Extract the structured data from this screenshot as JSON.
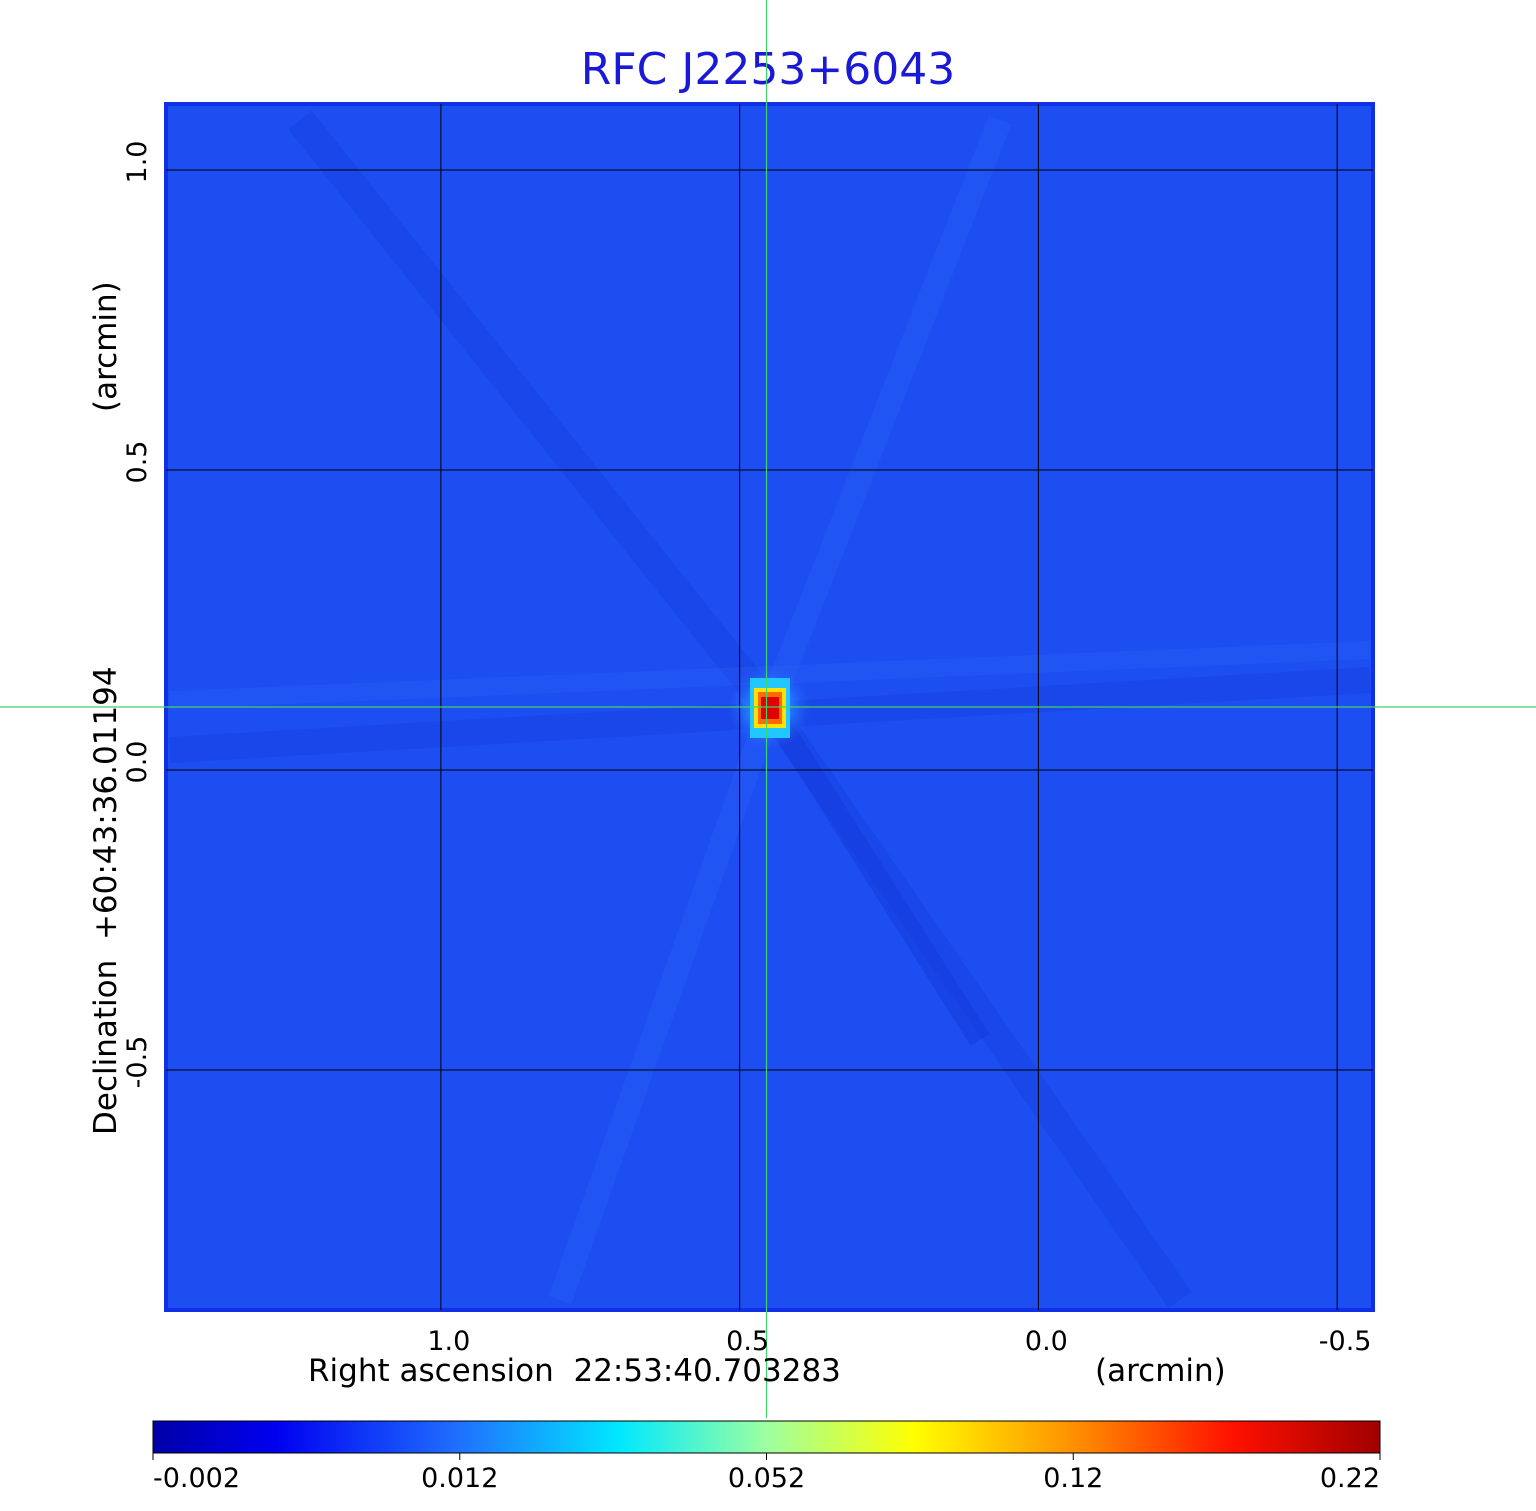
{
  "chart_data": {
    "type": "heatmap",
    "title": "RFC J2253+6043",
    "xlabel": "Right ascension  22:53:40.703283",
    "xunit": "(arcmin)",
    "ylabel": "Declination  +60:43:36.01194",
    "yunit": "(arcmin)",
    "xlim": [
      1.46,
      -0.56
    ],
    "ylim": [
      -0.9,
      1.11
    ],
    "x_ticks": [
      {
        "value": 1.0,
        "label": "1.0"
      },
      {
        "value": 0.5,
        "label": "0.5"
      },
      {
        "value": 0.0,
        "label": "0.0"
      },
      {
        "value": -0.5,
        "label": "-0.5"
      }
    ],
    "y_ticks": [
      {
        "value": 1.0,
        "label": "1.0"
      },
      {
        "value": 0.5,
        "label": "0.5"
      },
      {
        "value": 0.0,
        "label": "0.0"
      },
      {
        "value": -0.5,
        "label": "-0.5"
      }
    ],
    "grid": true,
    "crosshair": {
      "x": 0.455,
      "y": 0.105,
      "color": "#3fd46a"
    },
    "source_peak": {
      "x": 0.455,
      "y": 0.105,
      "value": 0.22
    },
    "colorbar": {
      "colormap": "jet",
      "ticks": [
        "-0.002",
        "0.012",
        "0.052",
        "0.12",
        "0.22"
      ],
      "min": -0.002,
      "max": 0.22
    },
    "background_color": "#1c4ef2",
    "frame_color": "#1030e6",
    "title_color": "#1a1ad6"
  }
}
